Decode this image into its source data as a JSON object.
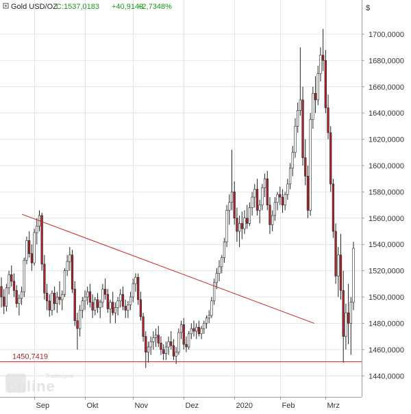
{
  "header": {
    "instrument": "Gold USD/OZ",
    "close": "C:1537,0183",
    "change": "+40,9149",
    "change_pct": "+2,7348%"
  },
  "currency_label": "$",
  "watermark": {
    "brand": "Tradesignal",
    "product": "online"
  },
  "colors": {
    "up": "#ffffff",
    "down": "#b0242c",
    "wick": "#222222",
    "trendline": "#cc1f1f",
    "support": "#cc1f1f",
    "header_green": "#1a9a1a",
    "grid": "#e4e4e4",
    "axis": "#9a9a9a"
  },
  "chart_data": {
    "type": "candlestick",
    "title": "Gold USD/OZ",
    "x_tick_labels": [
      "Sep",
      "Okt",
      "Nov",
      "Dez",
      "2020",
      "Feb",
      "Mrz"
    ],
    "y_tick_labels": [
      "1440,0000",
      "1460,0000",
      "1480,0000",
      "1500,0000",
      "1520,0000",
      "1540,0000",
      "1560,0000",
      "1580,0000",
      "1600,0000",
      "1620,0000",
      "1640,0000",
      "1660,0000",
      "1680,0000",
      "1700,0000"
    ],
    "ylim": [
      1424,
      1726
    ],
    "y_step": 20,
    "grid": true,
    "support_line": {
      "value": 1450.7419,
      "label": "1450,7419"
    },
    "trend_line": {
      "from": {
        "bar": 0,
        "value": 1563
      },
      "to": {
        "bar": 124,
        "value": 1480
      }
    },
    "candles": [
      [
        1508,
        1515,
        1492,
        1500
      ],
      [
        1500,
        1506,
        1487,
        1493
      ],
      [
        1493,
        1510,
        1489,
        1507
      ],
      [
        1507,
        1520,
        1502,
        1517
      ],
      [
        1517,
        1524,
        1508,
        1512
      ],
      [
        1512,
        1518,
        1500,
        1505
      ],
      [
        1505,
        1509,
        1492,
        1495
      ],
      [
        1495,
        1502,
        1486,
        1499
      ],
      [
        1499,
        1508,
        1494,
        1504
      ],
      [
        1504,
        1530,
        1500,
        1528
      ],
      [
        1528,
        1546,
        1525,
        1543
      ],
      [
        1543,
        1550,
        1530,
        1533
      ],
      [
        1533,
        1540,
        1520,
        1526
      ],
      [
        1526,
        1552,
        1524,
        1549
      ],
      [
        1549,
        1560,
        1540,
        1554
      ],
      [
        1554,
        1566,
        1550,
        1562
      ],
      [
        1562,
        1564,
        1520,
        1525
      ],
      [
        1525,
        1532,
        1498,
        1503
      ],
      [
        1503,
        1510,
        1490,
        1497
      ],
      [
        1497,
        1502,
        1485,
        1490
      ],
      [
        1490,
        1505,
        1486,
        1503
      ],
      [
        1503,
        1508,
        1490,
        1495
      ],
      [
        1495,
        1504,
        1488,
        1500
      ],
      [
        1500,
        1512,
        1494,
        1498
      ],
      [
        1498,
        1505,
        1490,
        1502
      ],
      [
        1502,
        1522,
        1500,
        1520
      ],
      [
        1520,
        1532,
        1516,
        1527
      ],
      [
        1527,
        1538,
        1520,
        1532
      ],
      [
        1532,
        1536,
        1503,
        1506
      ],
      [
        1506,
        1512,
        1478,
        1482
      ],
      [
        1482,
        1488,
        1460,
        1476
      ],
      [
        1476,
        1494,
        1470,
        1490
      ],
      [
        1490,
        1500,
        1484,
        1497
      ],
      [
        1497,
        1505,
        1490,
        1500
      ],
      [
        1500,
        1508,
        1494,
        1504
      ],
      [
        1504,
        1510,
        1492,
        1496
      ],
      [
        1496,
        1502,
        1484,
        1490
      ],
      [
        1490,
        1500,
        1486,
        1498
      ],
      [
        1498,
        1503,
        1488,
        1492
      ],
      [
        1492,
        1498,
        1484,
        1496
      ],
      [
        1496,
        1510,
        1492,
        1506
      ],
      [
        1506,
        1514,
        1498,
        1502
      ],
      [
        1502,
        1506,
        1488,
        1491
      ],
      [
        1491,
        1498,
        1480,
        1496
      ],
      [
        1496,
        1504,
        1486,
        1488
      ],
      [
        1488,
        1496,
        1480,
        1492
      ],
      [
        1492,
        1500,
        1486,
        1497
      ],
      [
        1497,
        1506,
        1492,
        1502
      ],
      [
        1502,
        1508,
        1490,
        1493
      ],
      [
        1493,
        1498,
        1484,
        1490
      ],
      [
        1490,
        1497,
        1484,
        1494
      ],
      [
        1494,
        1504,
        1490,
        1500
      ],
      [
        1500,
        1514,
        1496,
        1510
      ],
      [
        1510,
        1518,
        1504,
        1515
      ],
      [
        1515,
        1518,
        1494,
        1498
      ],
      [
        1498,
        1504,
        1482,
        1485
      ],
      [
        1485,
        1488,
        1466,
        1470
      ],
      [
        1470,
        1474,
        1446,
        1458
      ],
      [
        1458,
        1466,
        1450,
        1462
      ],
      [
        1462,
        1470,
        1456,
        1466
      ],
      [
        1466,
        1474,
        1460,
        1469
      ],
      [
        1469,
        1476,
        1462,
        1471
      ],
      [
        1471,
        1478,
        1462,
        1465
      ],
      [
        1465,
        1470,
        1456,
        1460
      ],
      [
        1460,
        1464,
        1452,
        1457
      ],
      [
        1457,
        1466,
        1452,
        1462
      ],
      [
        1462,
        1470,
        1456,
        1466
      ],
      [
        1466,
        1474,
        1460,
        1463
      ],
      [
        1463,
        1468,
        1452,
        1455
      ],
      [
        1455,
        1462,
        1449,
        1458
      ],
      [
        1458,
        1476,
        1456,
        1473
      ],
      [
        1473,
        1482,
        1468,
        1479
      ],
      [
        1479,
        1484,
        1460,
        1464
      ],
      [
        1464,
        1470,
        1458,
        1462
      ],
      [
        1462,
        1474,
        1460,
        1472
      ],
      [
        1472,
        1480,
        1468,
        1476
      ],
      [
        1476,
        1482,
        1470,
        1474
      ],
      [
        1474,
        1480,
        1468,
        1477
      ],
      [
        1477,
        1482,
        1470,
        1472
      ],
      [
        1472,
        1478,
        1468,
        1476
      ],
      [
        1476,
        1482,
        1472,
        1480
      ],
      [
        1480,
        1486,
        1476,
        1484
      ],
      [
        1484,
        1490,
        1480,
        1486
      ],
      [
        1486,
        1500,
        1484,
        1497
      ],
      [
        1497,
        1514,
        1494,
        1511
      ],
      [
        1511,
        1522,
        1506,
        1518
      ],
      [
        1518,
        1528,
        1512,
        1523
      ],
      [
        1523,
        1532,
        1518,
        1530
      ],
      [
        1530,
        1545,
        1526,
        1542
      ],
      [
        1542,
        1570,
        1538,
        1566
      ],
      [
        1566,
        1578,
        1555,
        1572
      ],
      [
        1572,
        1612,
        1566,
        1580
      ],
      [
        1580,
        1588,
        1555,
        1560
      ],
      [
        1560,
        1568,
        1542,
        1550
      ],
      [
        1550,
        1562,
        1538,
        1556
      ],
      [
        1556,
        1565,
        1544,
        1552
      ],
      [
        1552,
        1566,
        1548,
        1560
      ],
      [
        1560,
        1570,
        1552,
        1556
      ],
      [
        1556,
        1572,
        1554,
        1568
      ],
      [
        1568,
        1580,
        1562,
        1576
      ],
      [
        1576,
        1586,
        1568,
        1582
      ],
      [
        1582,
        1590,
        1562,
        1566
      ],
      [
        1566,
        1574,
        1556,
        1570
      ],
      [
        1570,
        1586,
        1566,
        1583
      ],
      [
        1583,
        1594,
        1576,
        1590
      ],
      [
        1590,
        1596,
        1566,
        1570
      ],
      [
        1570,
        1576,
        1548,
        1555
      ],
      [
        1555,
        1566,
        1550,
        1562
      ],
      [
        1562,
        1576,
        1558,
        1572
      ],
      [
        1572,
        1580,
        1566,
        1578
      ],
      [
        1578,
        1584,
        1570,
        1576
      ],
      [
        1576,
        1582,
        1564,
        1570
      ],
      [
        1570,
        1580,
        1566,
        1578
      ],
      [
        1578,
        1590,
        1574,
        1586
      ],
      [
        1586,
        1602,
        1582,
        1598
      ],
      [
        1598,
        1615,
        1592,
        1610
      ],
      [
        1610,
        1636,
        1606,
        1630
      ],
      [
        1630,
        1648,
        1625,
        1642
      ],
      [
        1642,
        1690,
        1638,
        1650
      ],
      [
        1650,
        1660,
        1600,
        1606
      ],
      [
        1606,
        1620,
        1585,
        1592
      ],
      [
        1592,
        1600,
        1560,
        1566
      ],
      [
        1566,
        1640,
        1562,
        1635
      ],
      [
        1635,
        1660,
        1628,
        1655
      ],
      [
        1655,
        1668,
        1640,
        1650
      ],
      [
        1650,
        1676,
        1646,
        1670
      ],
      [
        1670,
        1690,
        1664,
        1684
      ],
      [
        1684,
        1704,
        1672,
        1680
      ],
      [
        1680,
        1688,
        1640,
        1644
      ],
      [
        1644,
        1654,
        1620,
        1625
      ],
      [
        1625,
        1630,
        1580,
        1586
      ],
      [
        1586,
        1590,
        1545,
        1550
      ],
      [
        1550,
        1556,
        1510,
        1516
      ],
      [
        1516,
        1538,
        1500,
        1532
      ],
      [
        1532,
        1548,
        1498,
        1505
      ],
      [
        1505,
        1520,
        1450,
        1470
      ],
      [
        1470,
        1495,
        1460,
        1488
      ],
      [
        1488,
        1510,
        1464,
        1480
      ],
      [
        1480,
        1500,
        1456,
        1496
      ],
      [
        1496,
        1542,
        1490,
        1537
      ]
    ]
  }
}
